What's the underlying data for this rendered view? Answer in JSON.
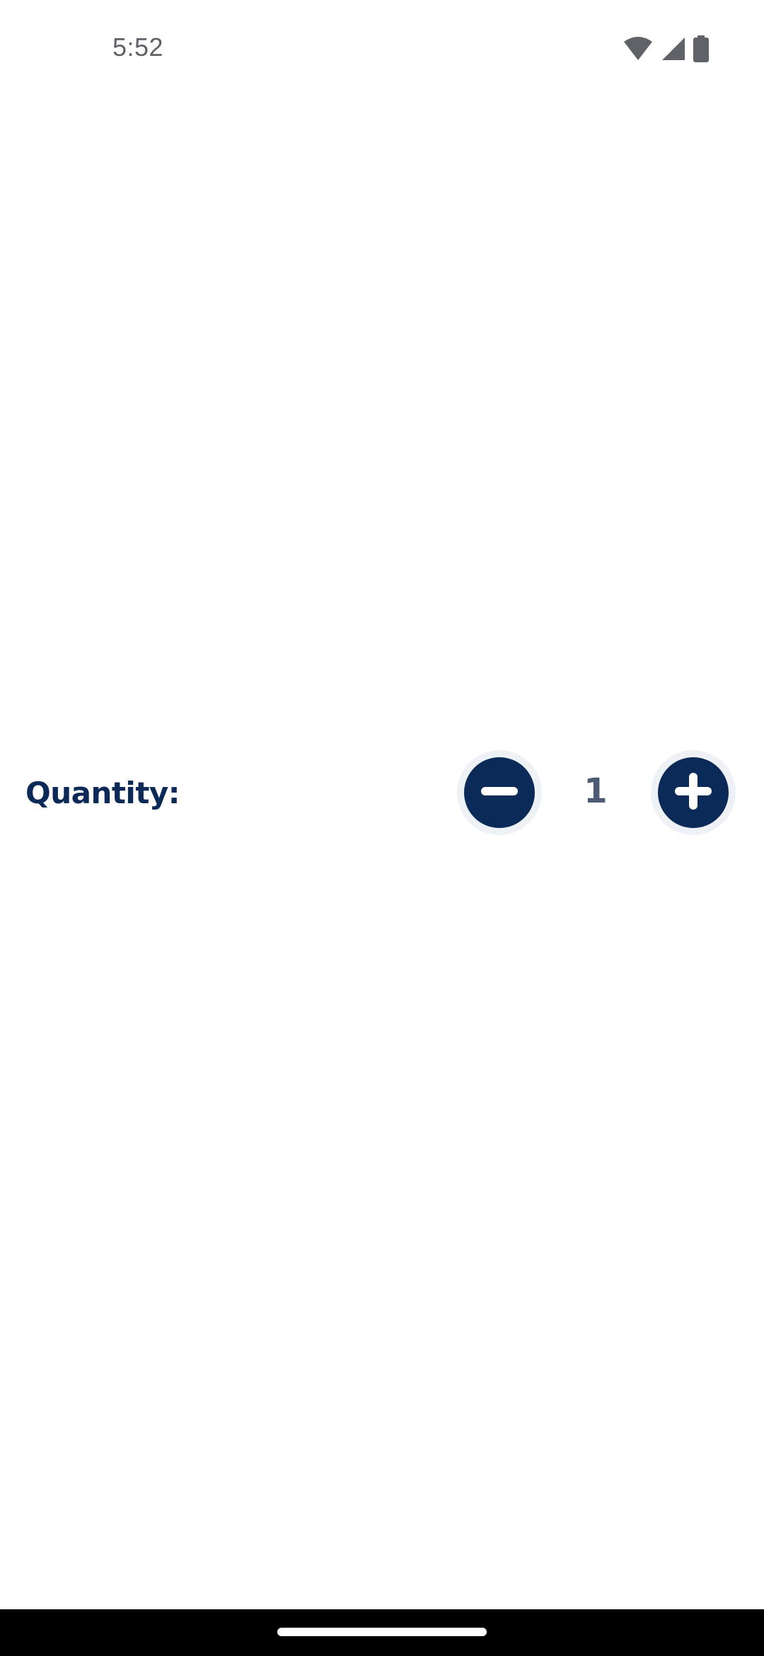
{
  "status_bar": {
    "time": "5:52",
    "icons": [
      "wifi-icon",
      "cellular-signal-icon",
      "battery-icon"
    ]
  },
  "quantity": {
    "label": "Quantity:",
    "value": "1",
    "decrement_icon": "minus-icon",
    "increment_icon": "plus-icon"
  },
  "colors": {
    "brand_navy": "#0b2a57",
    "button_halo": "#eef2f7",
    "value_text": "#4c5a74",
    "status_text": "#5f6368",
    "nav_bar": "#000000"
  }
}
